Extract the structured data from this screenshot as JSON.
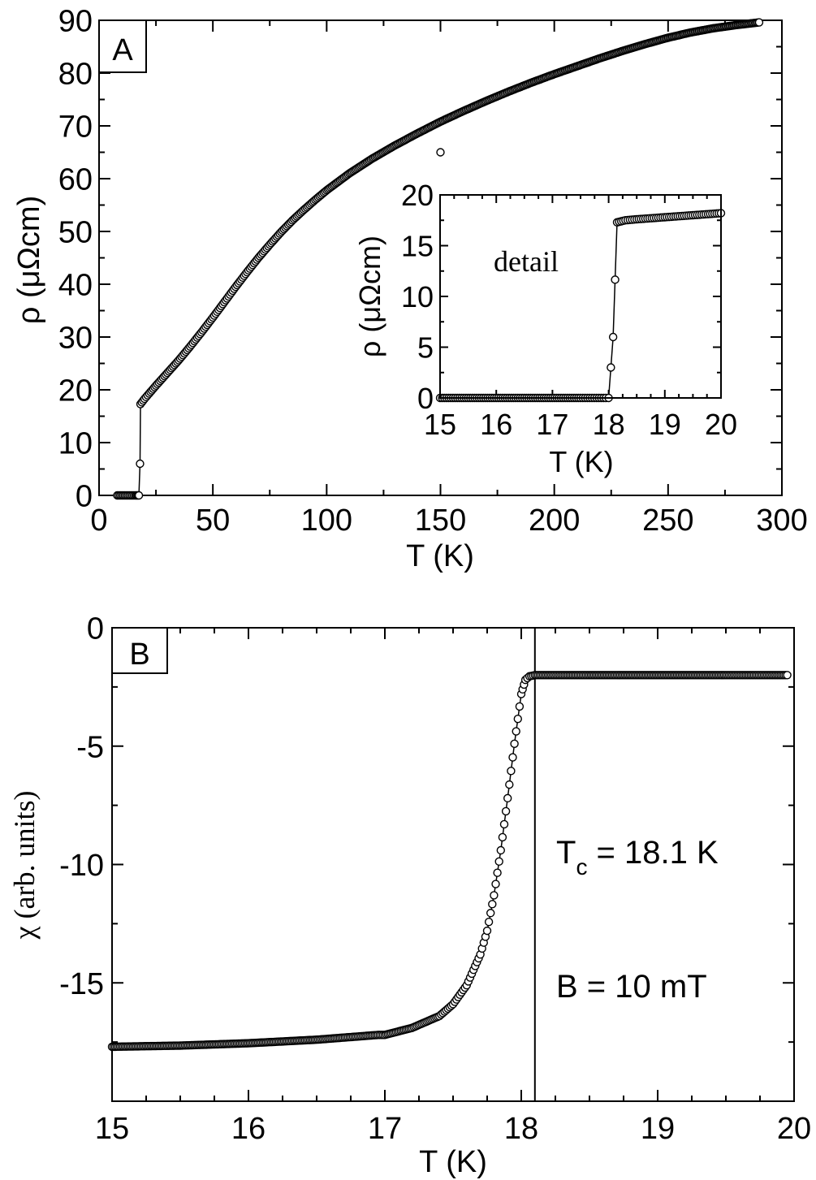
{
  "chart_data": [
    {
      "id": "A",
      "type": "scatter",
      "panel_label": "A",
      "xlabel": "T (K)",
      "ylabel": "ρ (μΩcm)",
      "xlim": [
        0,
        300
      ],
      "ylim": [
        0,
        90
      ],
      "xticks": [
        0,
        50,
        100,
        150,
        200,
        250,
        300
      ],
      "yticks": [
        0,
        10,
        20,
        30,
        40,
        50,
        60,
        70,
        80,
        90
      ],
      "grid": false,
      "series": [
        {
          "marker": "open-circle",
          "connected": true,
          "x": [
            8,
            10,
            12,
            14,
            16,
            17.5,
            18,
            18.2,
            20,
            22,
            25,
            30,
            35,
            40,
            45,
            50,
            55,
            60,
            65,
            70,
            75,
            80,
            85,
            90,
            95,
            100,
            110,
            120,
            130,
            140,
            150,
            160,
            170,
            180,
            190,
            200,
            210,
            220,
            230,
            240,
            250,
            260,
            270,
            280,
            290
          ],
          "y": [
            0,
            0,
            0,
            0,
            0,
            0,
            6,
            17.3,
            18.3,
            19.3,
            20.8,
            23.2,
            25.6,
            28.2,
            30.9,
            33.7,
            36.6,
            39.5,
            42.3,
            45,
            47.5,
            49.9,
            52.1,
            54.1,
            56,
            57.8,
            61,
            63.8,
            66.3,
            68.6,
            70.8,
            72.8,
            74.7,
            76.5,
            78.2,
            79.8,
            81.3,
            82.8,
            84.2,
            85.5,
            86.7,
            87.7,
            88.5,
            89.1,
            89.6
          ]
        }
      ],
      "outliers": [
        {
          "x": 150,
          "y": 65
        }
      ]
    },
    {
      "id": "A-inset",
      "type": "scatter",
      "annotation": "detail",
      "xlabel": "T (K)",
      "ylabel": "ρ (μΩcm)",
      "xlim": [
        15,
        20
      ],
      "ylim": [
        0,
        20
      ],
      "xticks": [
        15,
        16,
        17,
        18,
        19,
        20
      ],
      "yticks": [
        0,
        5,
        10,
        15,
        20
      ],
      "grid": false,
      "series": [
        {
          "marker": "open-circle",
          "connected": true,
          "x": [
            15,
            15.5,
            16,
            16.5,
            17,
            17.5,
            17.95,
            18.0,
            18.08,
            18.15,
            18.3,
            18.5,
            19,
            19.5,
            20
          ],
          "y": [
            0,
            0,
            0,
            0,
            0,
            0,
            0,
            0,
            6,
            17.3,
            17.5,
            17.6,
            17.8,
            18.0,
            18.2
          ]
        }
      ]
    },
    {
      "id": "B",
      "type": "scatter",
      "panel_label": "B",
      "xlabel": "T (K)",
      "ylabel": "χ (arb. units)",
      "xlim": [
        15,
        20
      ],
      "ylim": [
        -20,
        0
      ],
      "xticks": [
        15,
        16,
        17,
        18,
        19,
        20
      ],
      "yticks": [
        0,
        -5,
        -10,
        -15
      ],
      "grid": false,
      "series": [
        {
          "marker": "open-circle",
          "connected": true,
          "x": [
            15,
            15.5,
            16,
            16.5,
            16.95,
            17.0,
            17.2,
            17.4,
            17.5,
            17.6,
            17.7,
            17.75,
            17.8,
            17.85,
            17.9,
            17.95,
            18.0,
            18.03,
            18.06,
            18.1,
            18.5,
            19,
            19.5,
            19.95
          ],
          "y": [
            -17.7,
            -17.65,
            -17.55,
            -17.4,
            -17.2,
            -17.2,
            -16.9,
            -16.4,
            -15.9,
            -15.1,
            -13.8,
            -12.8,
            -11.3,
            -9.4,
            -7.2,
            -4.9,
            -2.8,
            -2.2,
            -2.05,
            -2.0,
            -2.0,
            -2.0,
            -2.0,
            -2.0
          ]
        }
      ],
      "vline": 18.1,
      "annotations": [
        {
          "text": "T",
          "subscript": "c",
          "suffix": " = 18.1 K"
        },
        {
          "text": "B = 10 mT"
        }
      ]
    }
  ]
}
